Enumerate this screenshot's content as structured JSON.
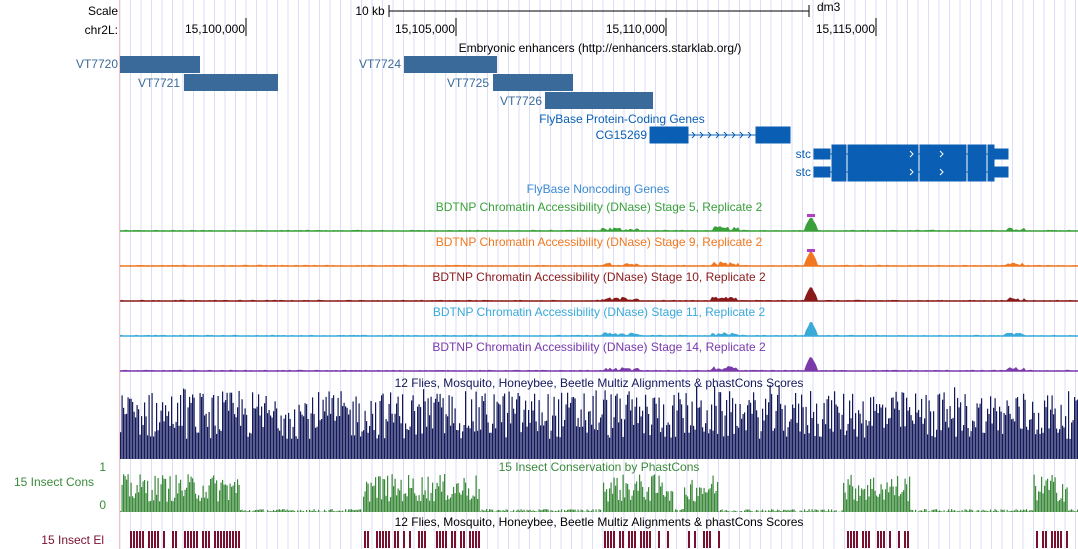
{
  "ruler": {
    "scale_label": "Scale",
    "scale_value": "10 kb",
    "assembly": "dm3",
    "chrom_label": "chr2L:",
    "ticks": [
      "15,100,000",
      "15,105,000",
      "15,110,000",
      "15,115,000"
    ]
  },
  "enhancers": {
    "title": "Embryonic enhancers (http://enhancers.starklab.org/)",
    "items": [
      "VT7720",
      "VT7721",
      "VT7724",
      "VT7725",
      "VT7726"
    ],
    "color": "#3a6a9a"
  },
  "coding_genes": {
    "title": "FlyBase Protein-Coding Genes",
    "items": [
      "CG15269",
      "stc",
      "stc"
    ],
    "color": "#0a5fb4"
  },
  "noncoding_genes": {
    "title": "FlyBase Noncoding Genes",
    "color": "#3a8ad4"
  },
  "dnase_tracks": [
    {
      "title": "BDTNP Chromatin Accessibility (DNase) Stage 5, Replicate 2",
      "color": "#3aa03a"
    },
    {
      "title": "BDTNP Chromatin Accessibility (DNase) Stage 9, Replicate 2",
      "color": "#f07820"
    },
    {
      "title": "BDTNP Chromatin Accessibility (DNase) Stage 10, Replicate 2",
      "color": "#8a1a1a"
    },
    {
      "title": "BDTNP Chromatin Accessibility (DNase) Stage 11, Replicate 2",
      "color": "#3aaad8"
    },
    {
      "title": "BDTNP Chromatin Accessibility (DNase) Stage 14, Replicate 2",
      "color": "#7a3aaa"
    }
  ],
  "multiz": {
    "title": "12 Flies, Mosquito, Honeybee, Beetle Multiz Alignments & phastCons Scores",
    "color": "#14195a"
  },
  "phastcons": {
    "title": "15 Insect Conservation by PhastCons",
    "side_label": "15 Insect Cons",
    "ymax": "1",
    "ymin": "0",
    "color": "#3a8a3a"
  },
  "elements": {
    "title": "12 Flies, Mosquito, Honeybee, Beetle Multiz Alignments & phastCons Scores",
    "side_label": "15 Insect El",
    "color": "#7a1030"
  },
  "colors": {
    "grid": "#dcdcf4",
    "highlight_guide": "#f4c0c0"
  }
}
